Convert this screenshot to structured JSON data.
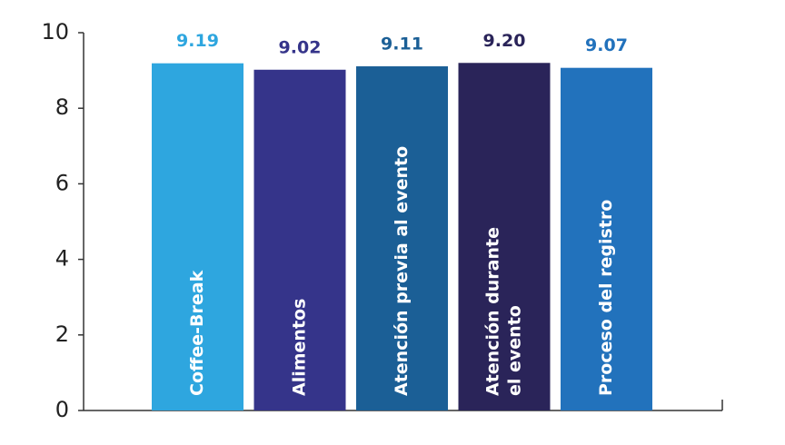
{
  "chart_data": {
    "type": "bar",
    "categories": [
      "Coffee-Break",
      "Alimentos",
      "Atención previa al evento",
      [
        "Atención durante",
        "el evento"
      ],
      "Proceso del registro"
    ],
    "values": [
      9.19,
      9.02,
      9.11,
      9.2,
      9.07
    ],
    "value_labels": [
      "9.19",
      "9.02",
      "9.11",
      "9.20",
      "9.07"
    ],
    "colors": [
      "#2ea6df",
      "#35348a",
      "#1b5f96",
      "#2a2459",
      "#2272bc"
    ],
    "ylim": [
      0,
      10
    ],
    "yticks": [
      0,
      2,
      4,
      6,
      8,
      10
    ]
  }
}
